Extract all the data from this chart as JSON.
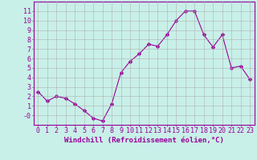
{
  "x": [
    0,
    1,
    2,
    3,
    4,
    5,
    6,
    7,
    8,
    9,
    10,
    11,
    12,
    13,
    14,
    15,
    16,
    17,
    18,
    19,
    20,
    21,
    22,
    23
  ],
  "y": [
    2.5,
    1.5,
    2.0,
    1.8,
    1.2,
    0.5,
    -0.3,
    -0.6,
    1.2,
    4.5,
    5.7,
    6.5,
    7.5,
    7.3,
    8.5,
    10.0,
    11.0,
    11.0,
    8.5,
    7.2,
    8.5,
    5.0,
    5.2,
    3.8
  ],
  "line_color": "#990099",
  "marker": "D",
  "marker_size": 2.5,
  "bg_color": "#c8f0e8",
  "grid_color": "#b0b0b0",
  "xlabel": "Windchill (Refroidissement éolien,°C)",
  "xlabel_fontsize": 6.5,
  "xtick_labels": [
    "0",
    "1",
    "2",
    "3",
    "4",
    "5",
    "6",
    "7",
    "8",
    "9",
    "10",
    "11",
    "12",
    "13",
    "14",
    "15",
    "16",
    "17",
    "18",
    "19",
    "20",
    "21",
    "22",
    "23"
  ],
  "ytick_labels": [
    "-0",
    "1",
    "2",
    "3",
    "4",
    "5",
    "6",
    "7",
    "8",
    "9",
    "10",
    "11"
  ],
  "ytick_values": [
    0,
    1,
    2,
    3,
    4,
    5,
    6,
    7,
    8,
    9,
    10,
    11
  ],
  "ylim": [
    -1.0,
    12.0
  ],
  "xlim": [
    -0.5,
    23.5
  ],
  "tick_color": "#990099",
  "tick_fontsize": 6.0,
  "spine_color": "#990099"
}
